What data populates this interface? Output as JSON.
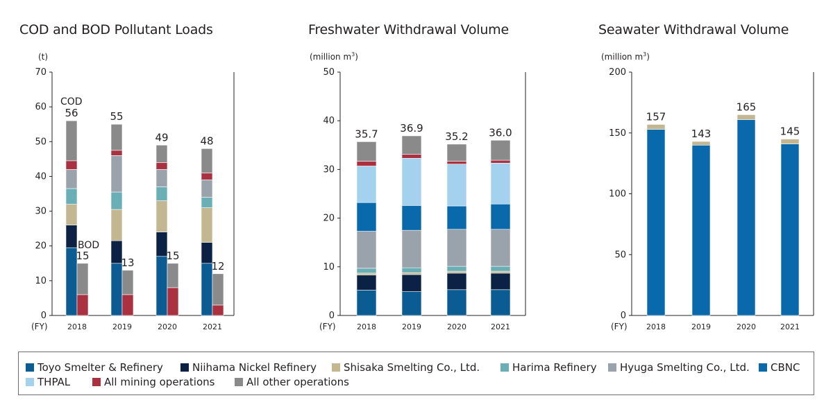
{
  "legend": [
    {
      "key": "toyo",
      "label": "Toyo Smelter & Refinery",
      "color": "#0a5c93"
    },
    {
      "key": "niihama",
      "label": "Niihama Nickel Refinery",
      "color": "#0b2244"
    },
    {
      "key": "shisaka",
      "label": "Shisaka Smelting Co., Ltd.",
      "color": "#c3b791"
    },
    {
      "key": "harima",
      "label": "Harima Refinery",
      "color": "#6aaeb6"
    },
    {
      "key": "hyuga",
      "label": "Hyuga Smelting Co., Ltd.",
      "color": "#9aa3ab"
    },
    {
      "key": "cbnc",
      "label": "CBNC",
      "color": "#0969aa"
    },
    {
      "key": "thpal",
      "label": "THPAL",
      "color": "#a4d2ee"
    },
    {
      "key": "mining",
      "label": "All mining operations",
      "color": "#aa3140"
    },
    {
      "key": "other",
      "label": "All other operations",
      "color": "#8a8a8a"
    }
  ],
  "chart_data": [
    {
      "type": "bar",
      "stacked": true,
      "title": "COD and BOD Pollutant Loads",
      "unit_label": "(t)",
      "xlabel": "(FY)",
      "ylim": [
        0,
        70
      ],
      "yticks": [
        "0",
        "10",
        "20",
        "30",
        "40",
        "50",
        "60",
        "70"
      ],
      "categories": [
        "2018",
        "2019",
        "2020",
        "2021"
      ],
      "series_labels": {
        "cod": "COD",
        "bod": "BOD"
      },
      "cod": {
        "stack_order": [
          "toyo",
          "niihama",
          "shisaka",
          "harima",
          "hyuga",
          "mining",
          "other"
        ],
        "values": {
          "toyo": [
            19.5,
            15,
            17,
            15
          ],
          "niihama": [
            6.5,
            6.5,
            7,
            6
          ],
          "shisaka": [
            6,
            9,
            9,
            10
          ],
          "harima": [
            4.5,
            5,
            4,
            3
          ],
          "hyuga": [
            5.5,
            10.5,
            5,
            5
          ],
          "mining": [
            2.5,
            1.5,
            2,
            2
          ],
          "other": [
            11.5,
            7.5,
            5,
            7
          ]
        },
        "totals": [
          "56",
          "55",
          "49",
          "48"
        ]
      },
      "bod": {
        "stack_order": [
          "mining",
          "other"
        ],
        "values": {
          "mining": [
            6,
            6,
            8,
            3
          ],
          "other": [
            9,
            7,
            7,
            9
          ]
        },
        "totals": [
          "15",
          "13",
          "15",
          "12"
        ]
      }
    },
    {
      "type": "bar",
      "stacked": true,
      "title": "Freshwater Withdrawal Volume",
      "unit_label": "(million m",
      "unit_sup": "3",
      "unit_close": ")",
      "xlabel": "(FY)",
      "ylim": [
        0,
        50
      ],
      "yticks": [
        "0",
        "10",
        "20",
        "30",
        "40",
        "50"
      ],
      "categories": [
        "2018",
        "2019",
        "2020",
        "2021"
      ],
      "stack_order": [
        "toyo",
        "niihama",
        "shisaka",
        "harima",
        "hyuga",
        "cbnc",
        "thpal",
        "mining",
        "other"
      ],
      "values": {
        "toyo": [
          5.2,
          4.9,
          5.3,
          5.3
        ],
        "niihama": [
          3.1,
          3.5,
          3.4,
          3.4
        ],
        "shisaka": [
          0.4,
          0.4,
          0.4,
          0.4
        ],
        "harima": [
          1,
          1,
          1,
          1
        ],
        "hyuga": [
          7.6,
          7.7,
          7.6,
          7.6
        ],
        "cbnc": [
          5.9,
          5.1,
          4.8,
          5.2
        ],
        "thpal": [
          7.5,
          9.7,
          8.6,
          8.4
        ],
        "mining": [
          1,
          0.8,
          0.6,
          0.6
        ],
        "other": [
          4,
          3.8,
          3.5,
          4.1
        ]
      },
      "totals": [
        "35.7",
        "36.9",
        "35.2",
        "36.0"
      ]
    },
    {
      "type": "bar",
      "stacked": true,
      "title": "Seawater Withdrawal Volume",
      "unit_label": "(million m",
      "unit_sup": "3",
      "unit_close": ")",
      "xlabel": "(FY)",
      "ylim": [
        0,
        200
      ],
      "yticks": [
        "0",
        "50",
        "100",
        "150",
        "200"
      ],
      "categories": [
        "2018",
        "2019",
        "2020",
        "2021"
      ],
      "stack_order": [
        "cbnc",
        "shisaka"
      ],
      "values": {
        "cbnc": [
          153,
          140,
          161,
          141
        ],
        "shisaka": [
          4,
          3,
          4,
          4
        ]
      },
      "totals": [
        "157",
        "143",
        "165",
        "145"
      ]
    }
  ]
}
